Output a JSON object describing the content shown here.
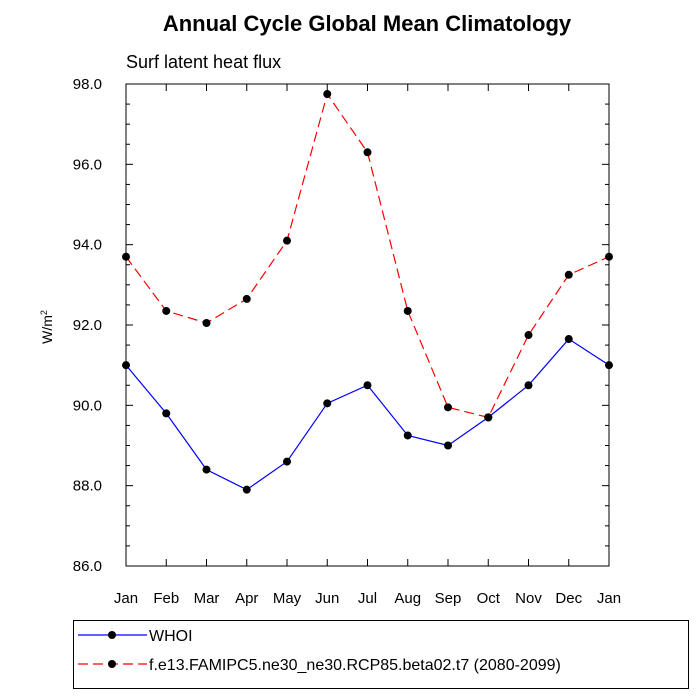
{
  "chart_data": {
    "type": "line",
    "title": "Annual Cycle Global Mean Climatology",
    "subtitle": "Surf latent heat flux",
    "ylabel": "W/m",
    "ylabel_superscript": "2",
    "ylim": [
      86.0,
      98.0
    ],
    "yticks": [
      "86.0",
      "88.0",
      "90.0",
      "92.0",
      "94.0",
      "96.0",
      "98.0"
    ],
    "categories": [
      "Jan",
      "Feb",
      "Mar",
      "Apr",
      "May",
      "Jun",
      "Jul",
      "Aug",
      "Sep",
      "Oct",
      "Nov",
      "Dec",
      "Jan"
    ],
    "grid": false,
    "legend_position": "bottom",
    "series": [
      {
        "name": "WHOI",
        "color": "#0000ff",
        "dash": "solid",
        "marker": "circle",
        "values": [
          91.0,
          89.8,
          88.4,
          87.9,
          88.6,
          90.05,
          90.5,
          89.25,
          89.0,
          89.7,
          90.5,
          91.65,
          91.0
        ]
      },
      {
        "name": "f.e13.FAMIPC5.ne30_ne30.RCP85.beta02.t7 (2080-2099)",
        "color": "#ff0000",
        "dash": "dashed",
        "marker": "circle",
        "values": [
          93.7,
          92.35,
          92.05,
          92.65,
          94.1,
          97.75,
          96.3,
          92.35,
          89.95,
          89.7,
          91.75,
          93.25,
          93.7
        ]
      }
    ]
  }
}
